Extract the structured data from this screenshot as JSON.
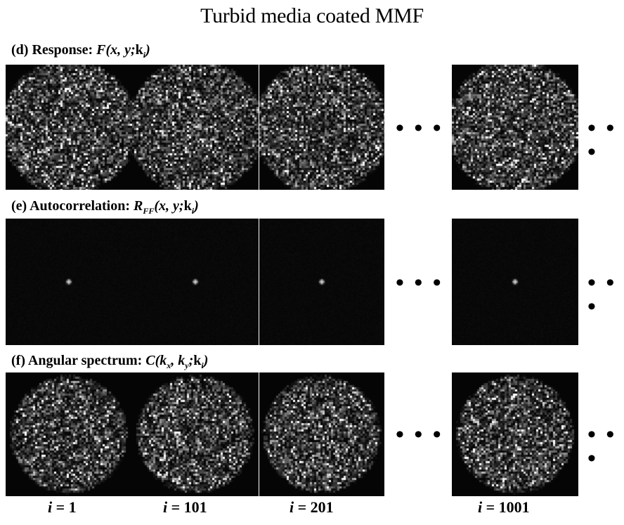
{
  "figure": {
    "title": "Turbid media coated MMF",
    "rows": [
      {
        "id": "d",
        "prefix": "(d) Response:",
        "math_fn": "F",
        "math_args": "(x, y;",
        "math_vec": "k",
        "math_sub": "i",
        "math_close": ")",
        "kind": "speckle"
      },
      {
        "id": "e",
        "prefix": "(e) Autocorrelation:",
        "math_fn": "R",
        "math_fn_sub": "FF",
        "math_args": "(x, y;",
        "math_vec": "k",
        "math_sub": "i",
        "math_close": ")",
        "kind": "autocorr"
      },
      {
        "id": "f",
        "prefix": "(f) Angular spectrum:",
        "math_fn": "C",
        "math_args": "(k",
        "math_args_sub1": "x",
        "math_args_mid": ", k",
        "math_args_sub2": "y",
        "math_args_end": ";",
        "math_vec": "k",
        "math_sub": "i",
        "math_close": ")",
        "kind": "spectrum"
      }
    ],
    "ellipsis": "• • •",
    "columns": [
      {
        "var": "i",
        "eq": " = 1"
      },
      {
        "var": "i",
        "eq": " = 101"
      },
      {
        "var": "i",
        "eq": " = 201"
      },
      {
        "var": "i",
        "eq": " = 1001"
      }
    ]
  }
}
